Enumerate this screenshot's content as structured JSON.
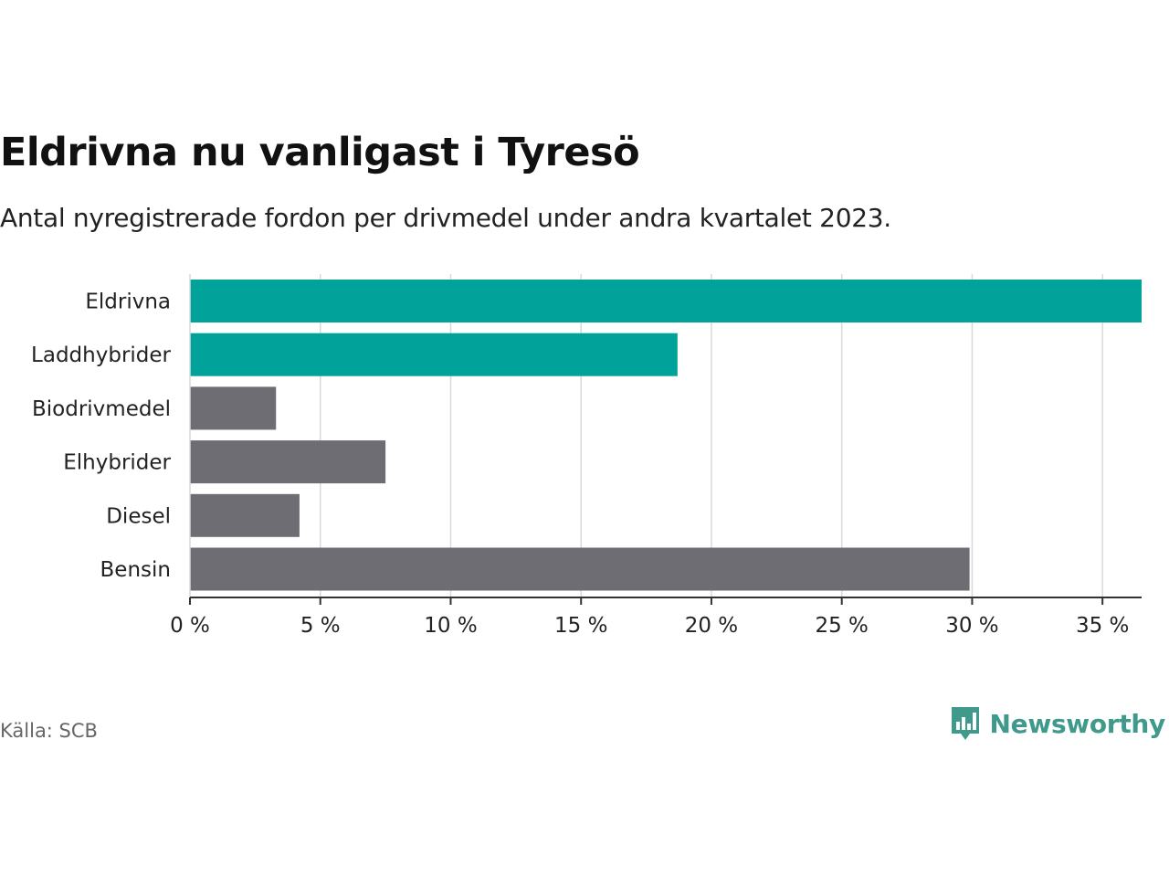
{
  "title": "Eldrivna nu vanligast i Tyresö",
  "subtitle": "Antal nyregistrerade fordon per drivmedel under andra kvartalet 2023.",
  "source": "Källa: SCB",
  "brand": {
    "name": "Newsworthy",
    "icon": "newsworthy-logo-icon"
  },
  "colors": {
    "highlight": "#00a29a",
    "other": "#6e6d74",
    "grid": "#d9d9d9",
    "axis": "#333333",
    "brand": "#3f9a8b"
  },
  "chart_data": {
    "type": "bar",
    "orientation": "horizontal",
    "categories": [
      "Eldrivna",
      "Laddhybrider",
      "Biodrivmedel",
      "Elhybrider",
      "Diesel",
      "Bensin"
    ],
    "values": [
      36.5,
      18.7,
      3.3,
      7.5,
      4.2,
      29.9
    ],
    "highlight": [
      true,
      true,
      false,
      false,
      false,
      false
    ],
    "unit": "%",
    "xlim": [
      0,
      36.5
    ],
    "ticks": [
      0,
      5,
      10,
      15,
      20,
      25,
      30,
      35
    ],
    "tick_labels": [
      "0 %",
      "5 %",
      "10 %",
      "15 %",
      "20 %",
      "25 %",
      "30 %",
      "35 %"
    ],
    "grid": true,
    "xlabel": "",
    "ylabel": ""
  }
}
